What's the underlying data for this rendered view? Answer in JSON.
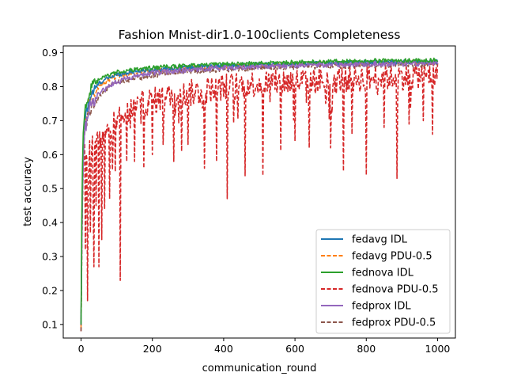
{
  "chart_data": {
    "type": "line",
    "title": "Fashion Mnist-dir1.0-100clients Completeness",
    "xlabel": "communication_round",
    "ylabel": "test accuracy",
    "xlim": [
      -50,
      1050
    ],
    "ylim": [
      0.06,
      0.92
    ],
    "xticks": [
      0,
      200,
      400,
      600,
      800,
      1000
    ],
    "xtick_labels": [
      "0",
      "200",
      "400",
      "600",
      "800",
      "1000"
    ],
    "yticks": [
      0.1,
      0.2,
      0.3,
      0.4,
      0.5,
      0.6,
      0.7,
      0.8,
      0.9
    ],
    "ytick_labels": [
      "0.1",
      "0.2",
      "0.3",
      "0.4",
      "0.5",
      "0.6",
      "0.7",
      "0.8",
      "0.9"
    ],
    "grid": false,
    "legend_position": "lower-right",
    "series": [
      {
        "name": "fedavg IDL",
        "color": "#1f77b4",
        "style": "solid",
        "x": [
          0,
          2,
          5,
          10,
          20,
          30,
          50,
          75,
          100,
          150,
          200,
          300,
          400,
          500,
          600,
          700,
          800,
          900,
          1000
        ],
        "y": [
          0.1,
          0.35,
          0.6,
          0.7,
          0.75,
          0.78,
          0.81,
          0.825,
          0.835,
          0.845,
          0.85,
          0.858,
          0.862,
          0.866,
          0.868,
          0.87,
          0.872,
          0.873,
          0.874
        ],
        "noise": 0.006
      },
      {
        "name": "fedavg PDU-0.5",
        "color": "#ff7f0e",
        "style": "dashed",
        "x": [
          0,
          2,
          5,
          10,
          20,
          30,
          50,
          75,
          100,
          150,
          200,
          300,
          400,
          500,
          600,
          700,
          800,
          900,
          1000
        ],
        "y": [
          0.09,
          0.33,
          0.58,
          0.69,
          0.74,
          0.77,
          0.8,
          0.82,
          0.83,
          0.84,
          0.848,
          0.855,
          0.86,
          0.864,
          0.866,
          0.868,
          0.87,
          0.871,
          0.872
        ],
        "noise": 0.007
      },
      {
        "name": "fednova IDL",
        "color": "#2ca02c",
        "style": "solid",
        "x": [
          0,
          2,
          5,
          10,
          20,
          30,
          50,
          75,
          100,
          150,
          200,
          300,
          400,
          500,
          600,
          700,
          800,
          900,
          1000
        ],
        "y": [
          0.1,
          0.4,
          0.65,
          0.73,
          0.77,
          0.8,
          0.82,
          0.833,
          0.843,
          0.85,
          0.856,
          0.862,
          0.866,
          0.869,
          0.872,
          0.874,
          0.876,
          0.877,
          0.878
        ],
        "noise": 0.006
      },
      {
        "name": "fednova PDU-0.5",
        "color": "#d62728",
        "style": "dashed",
        "x": [
          0,
          2,
          5,
          10,
          20,
          30,
          50,
          75,
          100,
          150,
          200,
          300,
          400,
          500,
          600,
          700,
          800,
          900,
          1000
        ],
        "y": [
          0.08,
          0.3,
          0.55,
          0.58,
          0.6,
          0.62,
          0.65,
          0.68,
          0.7,
          0.74,
          0.76,
          0.78,
          0.8,
          0.81,
          0.815,
          0.82,
          0.825,
          0.83,
          0.835
        ],
        "noise": 0.04,
        "dips": [
          [
            12,
            0.32
          ],
          [
            18,
            0.17
          ],
          [
            26,
            0.37
          ],
          [
            35,
            0.27
          ],
          [
            42,
            0.45
          ],
          [
            50,
            0.27
          ],
          [
            58,
            0.35
          ],
          [
            65,
            0.44
          ],
          [
            80,
            0.47
          ],
          [
            95,
            0.55
          ],
          [
            110,
            0.23
          ],
          [
            128,
            0.58
          ],
          [
            150,
            0.58
          ],
          [
            175,
            0.56
          ],
          [
            200,
            0.6
          ],
          [
            230,
            0.63
          ],
          [
            260,
            0.58
          ],
          [
            282,
            0.61
          ],
          [
            300,
            0.63
          ],
          [
            345,
            0.56
          ],
          [
            380,
            0.58
          ],
          [
            410,
            0.57
          ],
          [
            460,
            0.6
          ],
          [
            510,
            0.62
          ],
          [
            560,
            0.62
          ],
          [
            600,
            0.64
          ],
          [
            640,
            0.62
          ],
          [
            700,
            0.62
          ],
          [
            735,
            0.57
          ],
          [
            760,
            0.66
          ],
          [
            800,
            0.54
          ],
          [
            850,
            0.68
          ],
          [
            885,
            0.53
          ],
          [
            920,
            0.69
          ],
          [
            960,
            0.7
          ],
          [
            985,
            0.66
          ]
        ]
      },
      {
        "name": "fedprox IDL",
        "color": "#9467bd",
        "style": "solid",
        "x": [
          0,
          2,
          5,
          10,
          20,
          30,
          50,
          75,
          100,
          150,
          200,
          300,
          400,
          500,
          600,
          700,
          800,
          900,
          1000
        ],
        "y": [
          0.1,
          0.32,
          0.57,
          0.67,
          0.72,
          0.75,
          0.78,
          0.8,
          0.815,
          0.83,
          0.84,
          0.85,
          0.856,
          0.86,
          0.863,
          0.865,
          0.867,
          0.868,
          0.869
        ],
        "noise": 0.008
      },
      {
        "name": "fedprox PDU-0.5",
        "color": "#8c564b",
        "style": "dashed",
        "x": [
          0,
          2,
          5,
          10,
          20,
          30,
          50,
          75,
          100,
          150,
          200,
          300,
          400,
          500,
          600,
          700,
          800,
          900,
          1000
        ],
        "y": [
          0.08,
          0.3,
          0.55,
          0.66,
          0.71,
          0.74,
          0.77,
          0.795,
          0.81,
          0.825,
          0.835,
          0.846,
          0.852,
          0.857,
          0.86,
          0.862,
          0.864,
          0.865,
          0.866
        ],
        "noise": 0.009
      }
    ]
  }
}
